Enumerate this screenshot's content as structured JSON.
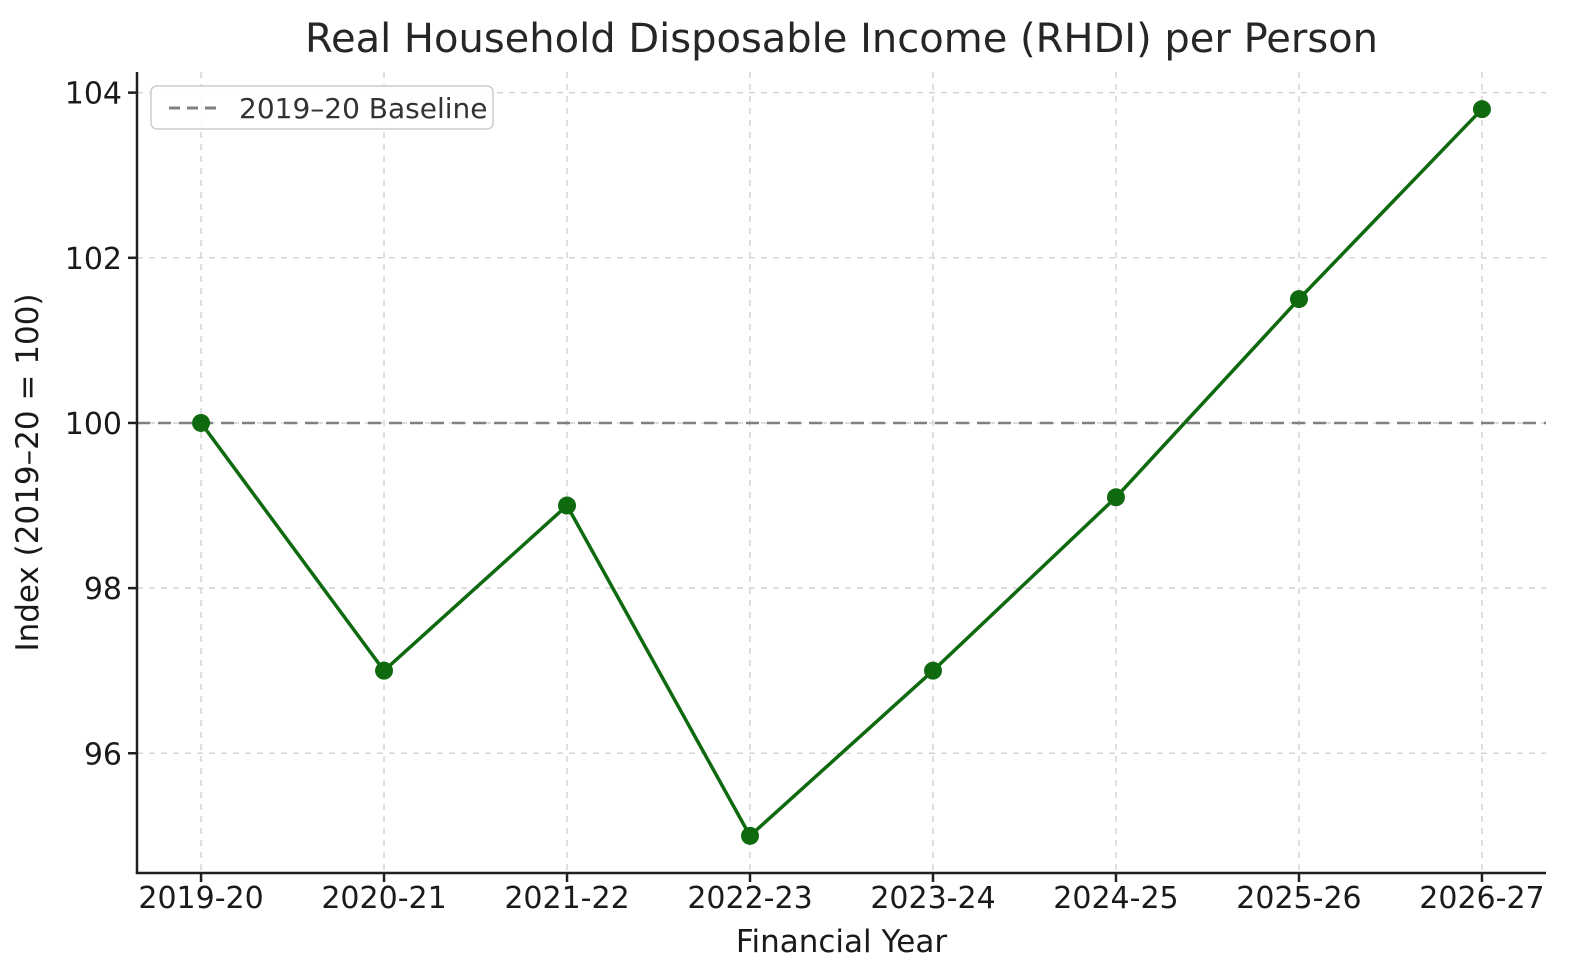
{
  "chart_data": {
    "type": "line",
    "title": "Real Household Disposable Income (RHDI) per Person",
    "xlabel": "Financial Year",
    "ylabel": "Index (2019–20 = 100)",
    "categories": [
      "2019-20",
      "2020-21",
      "2021-22",
      "2022-23",
      "2023-24",
      "2024-25",
      "2025-26",
      "2026-27"
    ],
    "values": [
      100.0,
      97.0,
      99.0,
      95.0,
      97.0,
      99.1,
      101.5,
      103.8
    ],
    "yticks": [
      96,
      98,
      100,
      102,
      104
    ],
    "ylim": [
      94.55,
      104.25
    ],
    "grid": true,
    "legend_position": "upper left",
    "baseline": {
      "value": 100,
      "label": "2019–20 Baseline"
    },
    "colors": {
      "line": "#0f6a0f",
      "marker": "#0f6a0f",
      "baseline": "#808080",
      "grid": "#d4d4d4",
      "spine": "#1f1f1f",
      "tick_text": "#1a1a1a",
      "title_text": "#262626",
      "legend_text": "#333333",
      "legend_border": "#cccccc",
      "background": "#ffffff"
    }
  }
}
